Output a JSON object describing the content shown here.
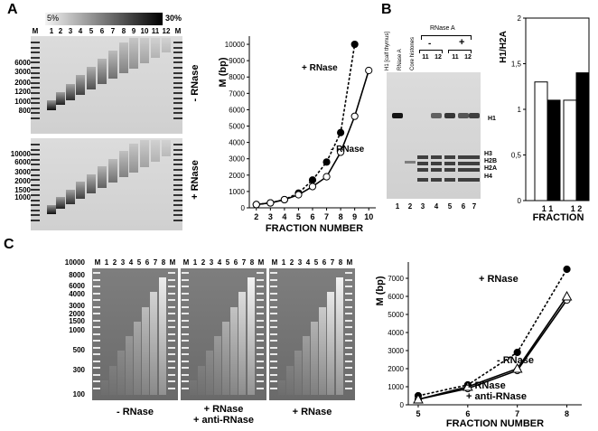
{
  "panelA": {
    "letter": "A",
    "gradient_low": "5%",
    "gradient_high": "30%",
    "lane_labels": [
      "M",
      "1",
      "2",
      "3",
      "4",
      "5",
      "6",
      "7",
      "8",
      "9",
      "10",
      "11",
      "12",
      "M"
    ],
    "sizes_top": [
      "6000",
      "3000",
      "2000",
      "1200",
      "1000",
      "800"
    ],
    "sizes_bottom": [
      "10000",
      "6000",
      "3000",
      "2000",
      "1500",
      "1000"
    ],
    "cond_top": "- RNase",
    "cond_bottom": "+ RNase",
    "chart_data": {
      "type": "line",
      "ylabel": "M (bp)",
      "xlabel": "FRACTION NUMBER",
      "x_ticks": [
        "2",
        "3",
        "4",
        "5",
        "6",
        "7",
        "8",
        "9",
        "10"
      ],
      "y_ticks": [
        "0",
        "1000",
        "2000",
        "3000",
        "4000",
        "5000",
        "6000",
        "7000",
        "8000",
        "9000",
        "10000"
      ],
      "xlim": [
        1.5,
        10.5
      ],
      "ylim": [
        0,
        10500
      ],
      "annot_plus": "+ RNase",
      "annot_minus": "- RNase",
      "series": [
        {
          "name": "+ RNase",
          "style": "dashed",
          "marker": "filled",
          "x": [
            2,
            3,
            4,
            5,
            6,
            7,
            8,
            9
          ],
          "y": [
            200,
            300,
            500,
            900,
            1700,
            2800,
            4600,
            10000
          ]
        },
        {
          "name": "- RNase",
          "style": "solid",
          "marker": "open",
          "x": [
            2,
            3,
            4,
            5,
            6,
            7,
            8,
            9,
            10
          ],
          "y": [
            200,
            300,
            500,
            800,
            1300,
            1900,
            3400,
            5600,
            8400
          ]
        }
      ]
    }
  },
  "panelB": {
    "letter": "B",
    "header": "RNase A",
    "minus": "-",
    "plus": "+",
    "col_labels": [
      "H1 [calf thymus]",
      "RNase A",
      "Core histones"
    ],
    "sub_fractions": [
      "11",
      "12",
      "11",
      "12"
    ],
    "band_labels": [
      "H1",
      "H3",
      "H2B",
      "H2A",
      "H4"
    ],
    "lane_numbers": [
      "1",
      "2",
      "3",
      "4",
      "5",
      "6",
      "7"
    ],
    "chart_data": {
      "type": "bar",
      "ylabel": "H1/H2A",
      "xlabel": "FRACTION",
      "categories": [
        "1 1",
        "1 2"
      ],
      "y_ticks": [
        "0",
        "0,5",
        "1",
        "1,5",
        "2"
      ],
      "ylim": [
        0,
        2
      ],
      "series": [
        {
          "fill": "#ffffff",
          "values": [
            1.3,
            1.1
          ]
        },
        {
          "fill": "#000000",
          "values": [
            1.1,
            1.4
          ]
        }
      ]
    }
  },
  "panelC": {
    "letter": "C",
    "lane_labels": [
      "M",
      "1",
      "2",
      "3",
      "4",
      "5",
      "6",
      "7",
      "8",
      "M"
    ],
    "sizes": [
      "10000",
      "8000",
      "6000",
      "4000",
      "3000",
      "2000",
      "1500",
      "1000",
      "500",
      "300",
      "100"
    ],
    "gel_labels": [
      "- RNase",
      "+ RNase\n+ anti-RNase",
      "+ RNase"
    ],
    "gel_label_lines": [
      [
        "- RNase"
      ],
      [
        "+ RNase",
        "+ anti-RNase"
      ],
      [
        "+ RNase"
      ]
    ],
    "chart_data": {
      "type": "line",
      "ylabel": "M (bp)",
      "xlabel": "FRACTION NUMBER",
      "x_ticks": [
        "5",
        "6",
        "7",
        "8"
      ],
      "y_ticks": [
        "0",
        "1000",
        "2000",
        "3000",
        "4000",
        "5000",
        "6000",
        "7000"
      ],
      "xlim": [
        4.8,
        8.3
      ],
      "ylim": [
        0,
        7900
      ],
      "annot_plus": "+ RNase",
      "annot_minus": "- RNase",
      "annot_anti_1": "+ RNase",
      "annot_anti_2": "+ anti-RNase",
      "series": [
        {
          "name": "+ RNase",
          "style": "dashed",
          "marker": "filled",
          "x": [
            5,
            6,
            7,
            8
          ],
          "y": [
            500,
            1100,
            2900,
            7500
          ]
        },
        {
          "name": "- RNase",
          "style": "solid",
          "marker": "open",
          "x": [
            5,
            6,
            7,
            8
          ],
          "y": [
            300,
            900,
            1900,
            5800
          ]
        },
        {
          "name": "+ RNase + anti-RNase",
          "style": "solid",
          "marker": "triangle",
          "x": [
            5,
            6,
            7,
            8
          ],
          "y": [
            300,
            1000,
            2000,
            6000
          ]
        }
      ]
    }
  }
}
